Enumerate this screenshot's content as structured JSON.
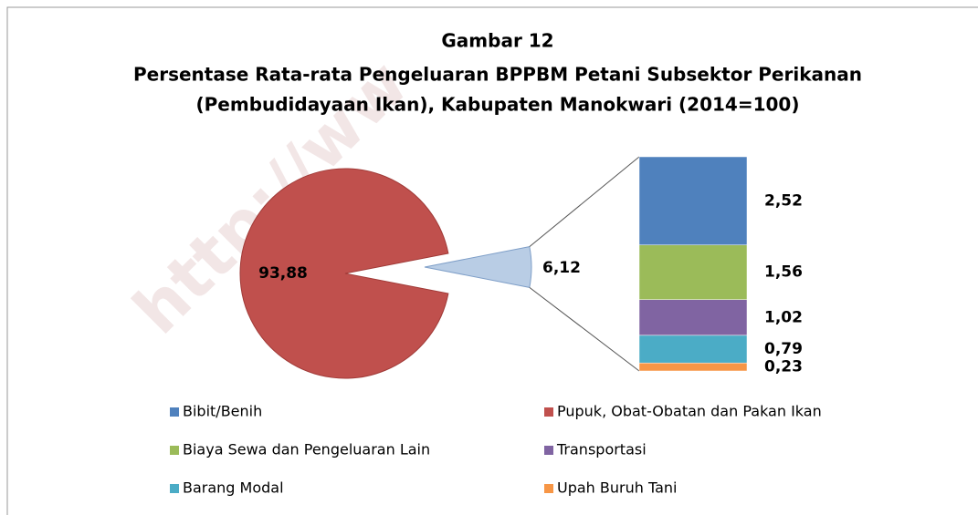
{
  "chart_data": {
    "type": "bar_of_pie",
    "title": "Gambar 12",
    "subtitle": [
      "Persentase Rata-rata Pengeluaran BPPBM Petani Subsektor Perikanan",
      "(Pembudidayaan Ikan), Kabupaten Manokwari (2014=100)"
    ],
    "watermark": "http://ww",
    "pie": [
      {
        "name": "Pupuk, Obat-Obatan dan Pakan Ikan",
        "color": "#c0504d",
        "value": 93.88,
        "value_label": "93,88"
      },
      {
        "color": "#b9cde5",
        "value": 6.12,
        "value_label": "6,12"
      }
    ],
    "bar": [
      {
        "name": "Bibit/Benih",
        "color": "#4f81bd",
        "value": 2.52,
        "value_label": "2,52"
      },
      {
        "name": "Biaya Sewa dan Pengeluaran Lain",
        "color": "#9bbb59",
        "value": 1.56,
        "value_label": "1,56"
      },
      {
        "name": "Transportasi",
        "color": "#8064a2",
        "value": 1.02,
        "value_label": "1,02"
      },
      {
        "name": "Barang Modal",
        "color": "#4bacc6",
        "value": 0.79,
        "value_label": "0,79"
      },
      {
        "name": "Upah Buruh Tani",
        "color": "#f79646",
        "value": 0.23,
        "value_label": "0,23"
      }
    ]
  }
}
